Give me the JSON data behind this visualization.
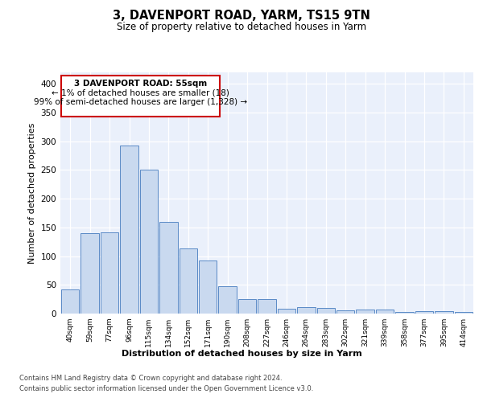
{
  "title1": "3, DAVENPORT ROAD, YARM, TS15 9TN",
  "title2": "Size of property relative to detached houses in Yarm",
  "xlabel": "Distribution of detached houses by size in Yarm",
  "ylabel": "Number of detached properties",
  "bar_labels": [
    "40sqm",
    "59sqm",
    "77sqm",
    "96sqm",
    "115sqm",
    "134sqm",
    "152sqm",
    "171sqm",
    "190sqm",
    "208sqm",
    "227sqm",
    "246sqm",
    "264sqm",
    "283sqm",
    "302sqm",
    "321sqm",
    "339sqm",
    "358sqm",
    "377sqm",
    "395sqm",
    "414sqm"
  ],
  "bar_values": [
    42,
    140,
    141,
    293,
    251,
    160,
    113,
    92,
    47,
    25,
    25,
    8,
    11,
    10,
    5,
    7,
    7,
    3,
    4,
    4,
    3
  ],
  "bar_color": "#c9d9ef",
  "bar_edge_color": "#5a8ac6",
  "annotation_title": "3 DAVENPORT ROAD: 55sqm",
  "annotation_line1": "← 1% of detached houses are smaller (18)",
  "annotation_line2": "99% of semi-detached houses are larger (1,328) →",
  "annotation_box_color": "#ffffff",
  "annotation_border_color": "#cc0000",
  "ylim": [
    0,
    420
  ],
  "yticks": [
    0,
    50,
    100,
    150,
    200,
    250,
    300,
    350,
    400
  ],
  "plot_bg_color": "#eaf0fb",
  "footer_line1": "Contains HM Land Registry data © Crown copyright and database right 2024.",
  "footer_line2": "Contains public sector information licensed under the Open Government Licence v3.0."
}
